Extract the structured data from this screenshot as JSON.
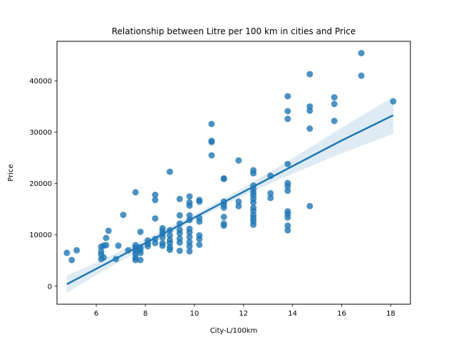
{
  "chart_data": {
    "type": "scatter",
    "title": "Relationship between Litre per 100 km in cities and Price",
    "xlabel": "City-L/100km",
    "ylabel": "Price",
    "xlim": [
      4.4,
      18.8
    ],
    "ylim": [
      -3500,
      47700
    ],
    "xticks": [
      6,
      8,
      10,
      12,
      14,
      16,
      18
    ],
    "yticks": [
      0,
      10000,
      20000,
      30000,
      40000
    ],
    "xtick_labels": [
      "6",
      "8",
      "10",
      "12",
      "14",
      "16",
      "18"
    ],
    "ytick_labels": [
      "0",
      "10000",
      "20000",
      "30000",
      "40000"
    ],
    "grid": false,
    "colors": {
      "points": "#1f77b4",
      "line": "#1f77b4",
      "band": "#1f77b4"
    },
    "series": [
      {
        "points": [
          [
            4.8,
            6500
          ],
          [
            5.0,
            5100
          ],
          [
            5.2,
            7000
          ],
          [
            6.2,
            5300
          ],
          [
            6.2,
            6200
          ],
          [
            6.2,
            6800
          ],
          [
            6.2,
            7700
          ],
          [
            6.3,
            7900
          ],
          [
            6.3,
            5600
          ],
          [
            6.4,
            9400
          ],
          [
            6.4,
            8000
          ],
          [
            6.5,
            10800
          ],
          [
            6.8,
            5300
          ],
          [
            6.9,
            7900
          ],
          [
            7.1,
            13900
          ],
          [
            7.3,
            7000
          ],
          [
            7.6,
            5100
          ],
          [
            7.6,
            5600
          ],
          [
            7.6,
            6300
          ],
          [
            7.6,
            6900
          ],
          [
            7.6,
            7500
          ],
          [
            7.6,
            8000
          ],
          [
            7.6,
            18300
          ],
          [
            7.8,
            5100
          ],
          [
            7.8,
            6500
          ],
          [
            7.8,
            7100
          ],
          [
            7.8,
            7600
          ],
          [
            7.8,
            10600
          ],
          [
            8.1,
            7800
          ],
          [
            8.1,
            8300
          ],
          [
            8.1,
            8900
          ],
          [
            8.4,
            8400
          ],
          [
            8.4,
            9200
          ],
          [
            8.4,
            13200
          ],
          [
            8.4,
            16800
          ],
          [
            8.4,
            17800
          ],
          [
            8.7,
            7900
          ],
          [
            8.7,
            8400
          ],
          [
            8.7,
            9500
          ],
          [
            8.7,
            10200
          ],
          [
            8.7,
            10800
          ],
          [
            8.7,
            11300
          ],
          [
            9.0,
            7100
          ],
          [
            9.0,
            7600
          ],
          [
            9.0,
            8400
          ],
          [
            9.0,
            9000
          ],
          [
            9.0,
            9900
          ],
          [
            9.0,
            10900
          ],
          [
            9.0,
            22300
          ],
          [
            9.4,
            6900
          ],
          [
            9.4,
            8500
          ],
          [
            9.4,
            9300
          ],
          [
            9.4,
            10300
          ],
          [
            9.4,
            11000
          ],
          [
            9.4,
            12200
          ],
          [
            9.4,
            13800
          ],
          [
            9.4,
            17000
          ],
          [
            9.8,
            6800
          ],
          [
            9.8,
            7800
          ],
          [
            9.8,
            8600
          ],
          [
            9.8,
            9600
          ],
          [
            9.8,
            10500
          ],
          [
            9.8,
            11200
          ],
          [
            9.8,
            12900
          ],
          [
            9.8,
            13800
          ],
          [
            9.8,
            15700
          ],
          [
            9.8,
            16300
          ],
          [
            9.8,
            17500
          ],
          [
            10.2,
            8100
          ],
          [
            10.2,
            9200
          ],
          [
            10.2,
            9900
          ],
          [
            10.2,
            12600
          ],
          [
            10.2,
            13300
          ],
          [
            10.2,
            16500
          ],
          [
            10.2,
            16800
          ],
          [
            10.7,
            25500
          ],
          [
            10.7,
            28100
          ],
          [
            10.7,
            28300
          ],
          [
            10.7,
            31600
          ],
          [
            11.2,
            11800
          ],
          [
            11.2,
            12200
          ],
          [
            11.2,
            13500
          ],
          [
            11.2,
            15300
          ],
          [
            11.2,
            15900
          ],
          [
            11.2,
            16500
          ],
          [
            11.2,
            20900
          ],
          [
            11.2,
            21000
          ],
          [
            11.8,
            15600
          ],
          [
            11.8,
            16500
          ],
          [
            11.8,
            24500
          ],
          [
            12.4,
            12000
          ],
          [
            12.4,
            12700
          ],
          [
            12.4,
            13300
          ],
          [
            12.4,
            13900
          ],
          [
            12.4,
            14700
          ],
          [
            12.4,
            15300
          ],
          [
            12.4,
            16300
          ],
          [
            12.4,
            17000
          ],
          [
            12.4,
            17700
          ],
          [
            12.4,
            18300
          ],
          [
            12.4,
            18900
          ],
          [
            12.4,
            19600
          ],
          [
            12.4,
            22000
          ],
          [
            12.4,
            22600
          ],
          [
            13.1,
            17200
          ],
          [
            13.1,
            18100
          ],
          [
            13.1,
            21500
          ],
          [
            13.8,
            10900
          ],
          [
            13.8,
            11800
          ],
          [
            13.8,
            13400
          ],
          [
            13.8,
            14100
          ],
          [
            13.8,
            14600
          ],
          [
            13.8,
            18600
          ],
          [
            13.8,
            19500
          ],
          [
            13.8,
            20100
          ],
          [
            13.8,
            23800
          ],
          [
            13.8,
            32600
          ],
          [
            13.8,
            34100
          ],
          [
            13.8,
            37000
          ],
          [
            14.7,
            15600
          ],
          [
            14.7,
            30700
          ],
          [
            14.7,
            34200
          ],
          [
            14.7,
            35000
          ],
          [
            14.7,
            41300
          ],
          [
            15.7,
            32200
          ],
          [
            15.7,
            35500
          ],
          [
            15.7,
            36800
          ],
          [
            16.8,
            41000
          ],
          [
            16.8,
            45400
          ],
          [
            18.1,
            36000
          ]
        ]
      }
    ],
    "regression": {
      "x": [
        4.8,
        6,
        8,
        10,
        12,
        14,
        16,
        18.1
      ],
      "y": [
        400,
        3400,
        8400,
        13400,
        18400,
        23400,
        28400,
        33300
      ],
      "ci_lower": [
        -1300,
        2200,
        7600,
        12800,
        17700,
        21900,
        25900,
        29700
      ],
      "ci_upper": [
        2100,
        4600,
        9200,
        14000,
        19200,
        24900,
        30900,
        36900
      ]
    }
  }
}
